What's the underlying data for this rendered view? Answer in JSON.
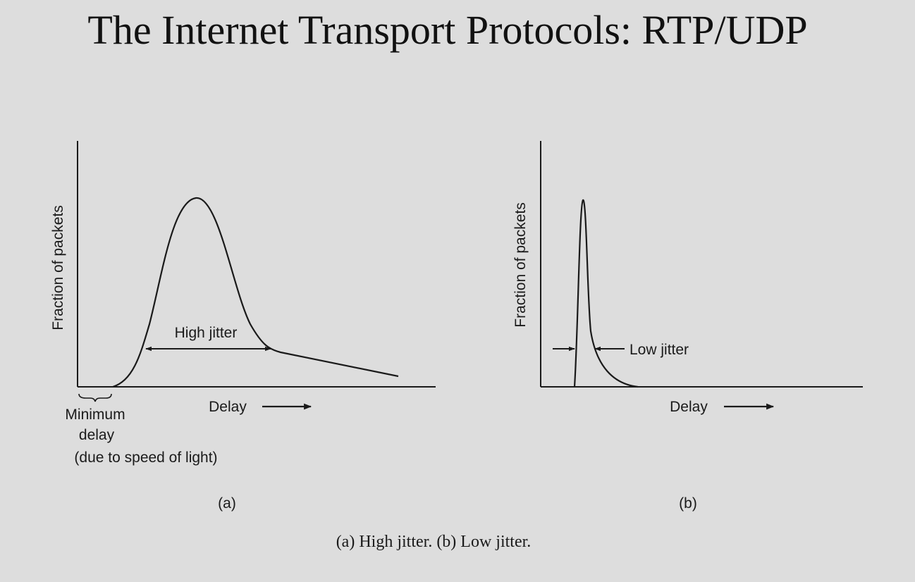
{
  "slide": {
    "title": "The Internet Transport Protocols: RTP/UDP",
    "caption": "(a) High jitter. (b) Low jitter."
  },
  "panel_a": {
    "ylabel": "Fraction of packets",
    "xlabel": "Delay",
    "jitter_label": "High jitter",
    "min_delay_lines": [
      "Minimum",
      "delay",
      "(due to speed of light)"
    ],
    "panel_label": "(a)"
  },
  "panel_b": {
    "ylabel": "Fraction of packets",
    "xlabel": "Delay",
    "jitter_label": "Low jitter",
    "panel_label": "(b)"
  },
  "colors": {
    "background": "#dddddd",
    "ink": "#1a1a1a"
  }
}
